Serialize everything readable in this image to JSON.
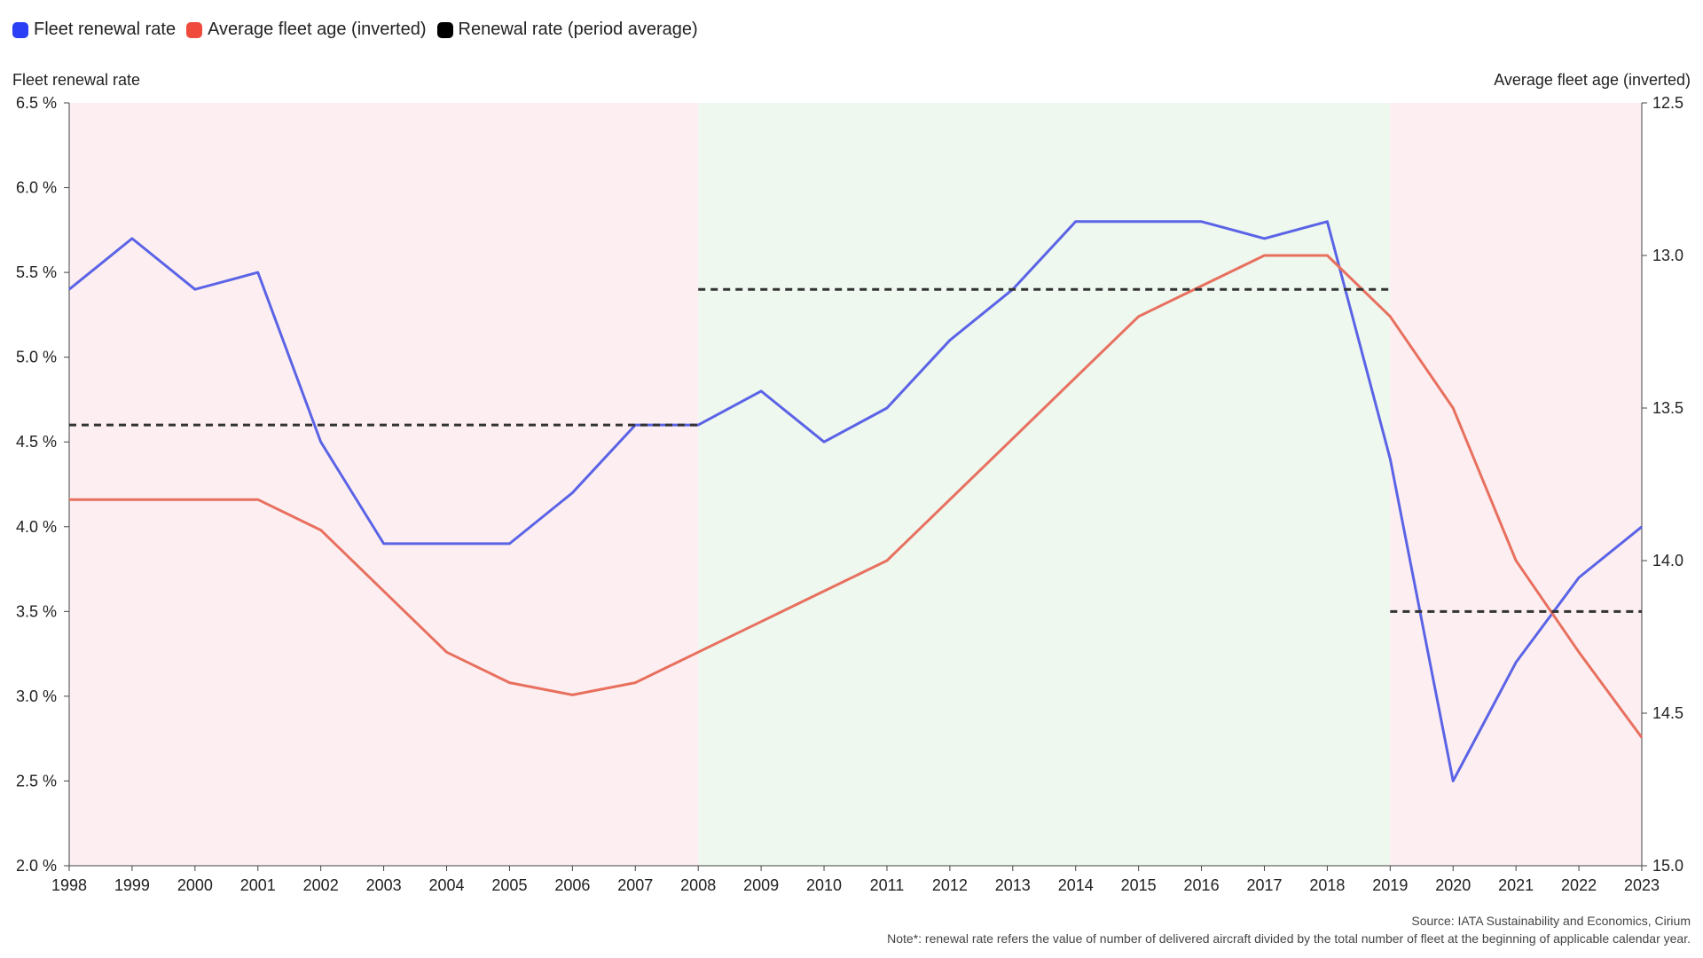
{
  "legend": [
    {
      "label": "Fleet renewal rate",
      "color": "#2b3ff5"
    },
    {
      "label": "Average fleet age (inverted)",
      "color": "#ef4a3c"
    },
    {
      "label": "Renewal rate (period average)",
      "color": "#000000"
    }
  ],
  "axes": {
    "left_title": "Fleet renewal rate",
    "right_title": "Average fleet age (inverted)"
  },
  "footer": {
    "source": "Source: IATA Sustainability and Economics, Cirium",
    "note": "Note*: renewal rate refers the value of number of delivered aircraft divided by the total number of fleet at the beginning of applicable calendar year."
  },
  "chart_data": {
    "type": "line",
    "x": [
      1998,
      1999,
      2000,
      2001,
      2002,
      2003,
      2004,
      2005,
      2006,
      2007,
      2008,
      2009,
      2010,
      2011,
      2012,
      2013,
      2014,
      2015,
      2016,
      2017,
      2018,
      2019,
      2020,
      2021,
      2022,
      2023
    ],
    "left_axis": {
      "title": "Fleet renewal rate",
      "ylim": [
        2.0,
        6.5
      ],
      "ticks": [
        2.0,
        2.5,
        3.0,
        3.5,
        4.0,
        4.5,
        5.0,
        5.5,
        6.0,
        6.5
      ],
      "tick_labels": [
        "2.0 %",
        "2.5 %",
        "3.0 %",
        "3.5 %",
        "4.0 %",
        "4.5 %",
        "5.0 %",
        "5.5 %",
        "6.0 %",
        "6.5 %"
      ]
    },
    "right_axis": {
      "title": "Average fleet age (inverted)",
      "ylim": [
        12.5,
        15.0
      ],
      "inverted": true,
      "ticks": [
        12.5,
        13.0,
        13.5,
        14.0,
        14.5,
        15.0
      ],
      "tick_labels": [
        "12.5",
        "13.0",
        "13.5",
        "14.0",
        "14.5",
        "15.0"
      ]
    },
    "series": [
      {
        "name": "Fleet renewal rate",
        "axis": "left",
        "color": "#5b63e6",
        "values": [
          5.4,
          5.7,
          5.4,
          5.5,
          4.5,
          3.9,
          3.9,
          3.9,
          4.2,
          4.6,
          4.6,
          4.8,
          4.5,
          4.7,
          5.1,
          5.4,
          5.8,
          5.8,
          5.8,
          5.7,
          5.8,
          4.4,
          2.5,
          3.2,
          3.7,
          4.0
        ]
      },
      {
        "name": "Average fleet age (inverted)",
        "axis": "right",
        "color": "#e8705f",
        "values": [
          13.8,
          13.8,
          13.8,
          13.8,
          13.9,
          14.1,
          14.3,
          14.4,
          14.44,
          14.4,
          14.3,
          14.2,
          14.1,
          14.0,
          13.8,
          13.6,
          13.4,
          13.2,
          13.1,
          13.0,
          13.0,
          13.2,
          13.5,
          14.0,
          14.3,
          14.58
        ]
      },
      {
        "name": "Renewal rate (period average)",
        "axis": "left",
        "color": "#333333",
        "style": "dashed",
        "segments": [
          {
            "x_start": 1998,
            "x_end": 2008,
            "value": 4.6
          },
          {
            "x_start": 2008,
            "x_end": 2019,
            "value": 5.4
          },
          {
            "x_start": 2019,
            "x_end": 2023,
            "value": 3.5
          }
        ]
      }
    ],
    "shaded_periods": [
      {
        "start": 1998,
        "end": 2008,
        "color": "#fdeff1"
      },
      {
        "start": 2008,
        "end": 2019,
        "color": "#eef8ef"
      },
      {
        "start": 2019,
        "end": 2023,
        "color": "#fdeff1"
      }
    ]
  }
}
